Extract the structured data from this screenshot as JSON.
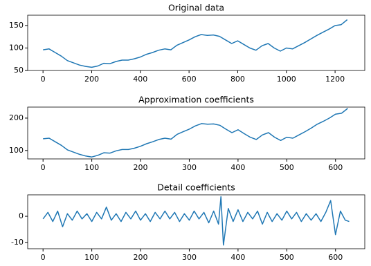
{
  "chart_data": [
    {
      "type": "line",
      "title": "Original data",
      "color": "#1f77b4",
      "x": [
        0,
        25,
        50,
        75,
        100,
        125,
        150,
        175,
        200,
        225,
        250,
        275,
        300,
        325,
        350,
        375,
        400,
        425,
        450,
        475,
        500,
        525,
        550,
        575,
        600,
        625,
        650,
        675,
        700,
        725,
        750,
        775,
        800,
        825,
        850,
        875,
        900,
        925,
        950,
        975,
        1000,
        1025,
        1050,
        1075,
        1100,
        1125,
        1150,
        1175,
        1200,
        1225,
        1250
      ],
      "values": [
        96,
        98,
        90,
        82,
        72,
        67,
        62,
        59,
        57,
        60,
        66,
        65,
        70,
        73,
        73,
        76,
        80,
        86,
        90,
        95,
        98,
        96,
        106,
        112,
        118,
        125,
        130,
        128,
        129,
        126,
        118,
        110,
        116,
        108,
        100,
        95,
        105,
        110,
        100,
        93,
        100,
        98,
        105,
        112,
        120,
        128,
        135,
        142,
        150,
        152,
        163
      ],
      "xlim": [
        -63,
        1322
      ],
      "ylim": [
        50,
        173
      ],
      "xticks": [
        0,
        200,
        400,
        600,
        800,
        1000,
        1200
      ],
      "yticks": [
        50,
        100,
        150
      ]
    },
    {
      "type": "line",
      "title": "Approximation coefficients",
      "color": "#1f77b4",
      "x": [
        0,
        12.5,
        25,
        37.5,
        50,
        62.5,
        75,
        87.5,
        100,
        112.5,
        125,
        137.5,
        150,
        162.5,
        175,
        187.5,
        200,
        212.5,
        225,
        237.5,
        250,
        262.5,
        275,
        287.5,
        300,
        312.5,
        325,
        337.5,
        350,
        362.5,
        375,
        387.5,
        400,
        412.5,
        425,
        437.5,
        450,
        462.5,
        475,
        487.5,
        500,
        512.5,
        525,
        537.5,
        550,
        562.5,
        575,
        587.5,
        600,
        612.5,
        625
      ],
      "values": [
        136,
        138,
        127,
        116,
        102,
        95,
        88,
        83,
        80,
        85,
        93,
        92,
        99,
        103,
        103,
        107,
        113,
        121,
        127,
        134,
        138,
        135,
        150,
        158,
        166,
        176,
        183,
        181,
        182,
        178,
        166,
        155,
        164,
        152,
        141,
        134,
        148,
        155,
        141,
        131,
        141,
        138,
        148,
        158,
        169,
        181,
        190,
        200,
        212,
        215,
        230
      ],
      "xlim": [
        -31.5,
        660
      ],
      "ylim": [
        74,
        234
      ],
      "xticks": [
        0,
        100,
        200,
        300,
        400,
        500,
        600
      ],
      "yticks": [
        100,
        200
      ]
    },
    {
      "type": "line",
      "title": "Detail coefficients",
      "color": "#1f77b4",
      "x": [
        0,
        10,
        20,
        30,
        40,
        50,
        60,
        70,
        80,
        90,
        100,
        110,
        120,
        130,
        140,
        150,
        160,
        170,
        180,
        190,
        200,
        210,
        220,
        230,
        240,
        250,
        260,
        270,
        280,
        290,
        300,
        310,
        320,
        330,
        340,
        350,
        360,
        365,
        370,
        380,
        390,
        400,
        410,
        420,
        430,
        440,
        450,
        460,
        470,
        480,
        490,
        500,
        510,
        520,
        530,
        540,
        550,
        560,
        570,
        580,
        590,
        600,
        610,
        620,
        628
      ],
      "values": [
        -1,
        1.5,
        -2,
        2,
        -4,
        1,
        -1.5,
        2,
        -1,
        1,
        -2,
        1.5,
        -1,
        3.5,
        -1.5,
        1,
        -2,
        1.5,
        -1,
        2,
        -1.5,
        1,
        -2,
        1.5,
        -1,
        2,
        -1,
        1.5,
        -2,
        1,
        -1.5,
        2,
        -1,
        1.5,
        -2.5,
        2,
        -3,
        7.5,
        -11,
        3,
        -2,
        2.5,
        -2,
        1.5,
        -1,
        2,
        -3,
        1.5,
        -2,
        1,
        -1.5,
        2,
        -1,
        1.5,
        -2,
        1,
        -1.5,
        1,
        -2,
        1.5,
        6,
        -7,
        2,
        -1.5,
        -2
      ],
      "xlim": [
        -31.5,
        660
      ],
      "ylim": [
        -12.4,
        8.2
      ],
      "xticks": [
        0,
        100,
        200,
        300,
        400,
        500,
        600
      ],
      "yticks": [
        -10,
        0
      ]
    }
  ]
}
